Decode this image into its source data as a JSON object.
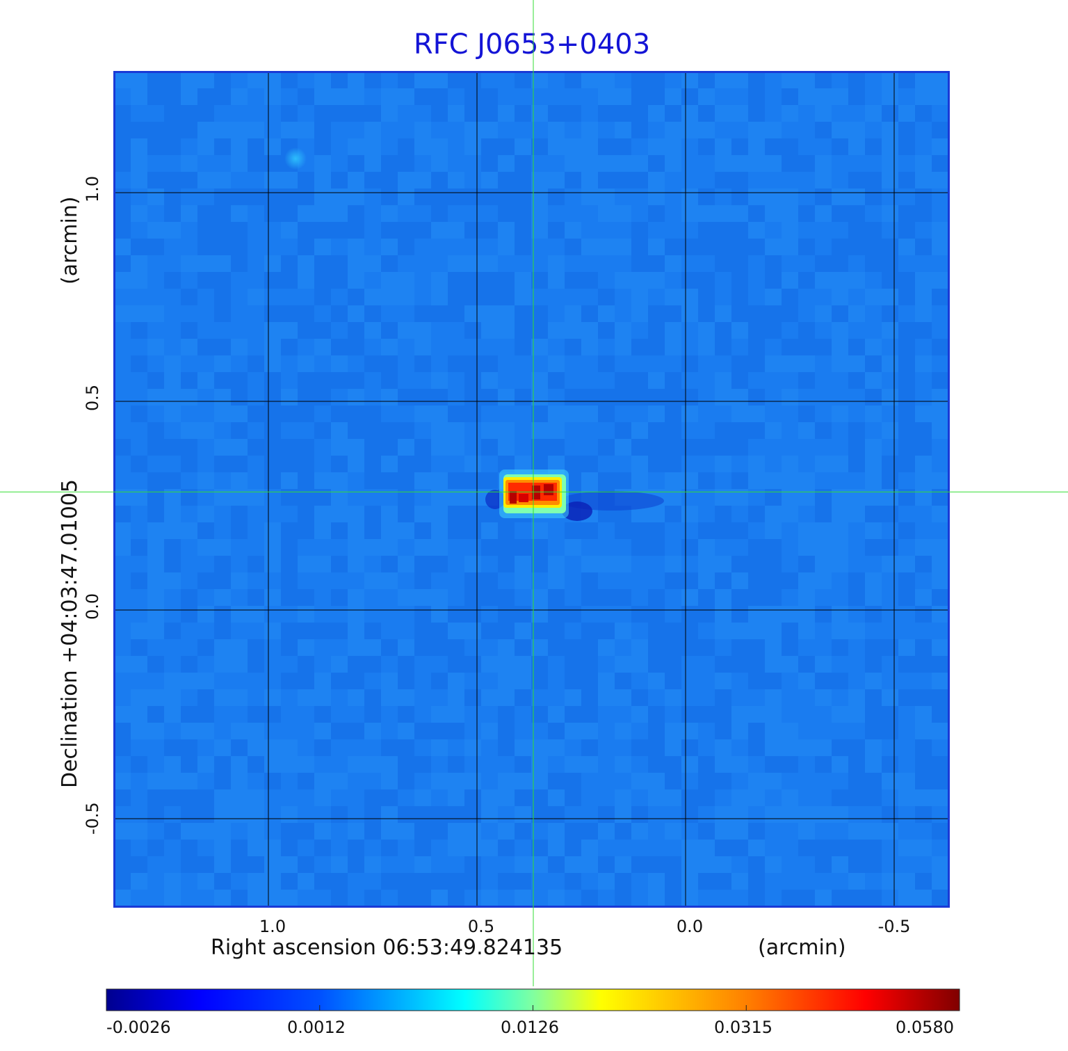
{
  "title": "RFC J0653+0403",
  "x_axis": {
    "label": "Right ascension  06:53:49.824135",
    "unit": "(arcmin)",
    "ticks": [
      "1.0",
      "0.5",
      "0.0",
      "-0.5"
    ],
    "range": [
      1.37,
      -0.63
    ],
    "grid_values": [
      1.0,
      0.5,
      0.0,
      -0.5
    ]
  },
  "y_axis": {
    "label": "Declination  +04:03:47.01005",
    "unit": "(arcmin)",
    "ticks": [
      "1.0",
      "0.5",
      "0.0",
      "-0.5"
    ],
    "range": [
      -0.71,
      1.29
    ],
    "grid_values": [
      1.0,
      0.5,
      0.0,
      -0.5
    ]
  },
  "colorbar": {
    "ticks": [
      "-0.0026",
      "0.0012",
      "0.0126",
      "0.0315",
      "0.0580"
    ],
    "colormap": "jet"
  },
  "crosshair": {
    "ra_offset_arcmin": 0.365,
    "dec_offset_arcmin": 0.283,
    "color": "#33dd33"
  },
  "source_peak": {
    "ra_offset_arcmin": 0.36,
    "dec_offset_arcmin": 0.285
  },
  "colors": {
    "title": "#1414d6",
    "frame": "#1a3ad6",
    "background_map": "#1a7cf0"
  }
}
